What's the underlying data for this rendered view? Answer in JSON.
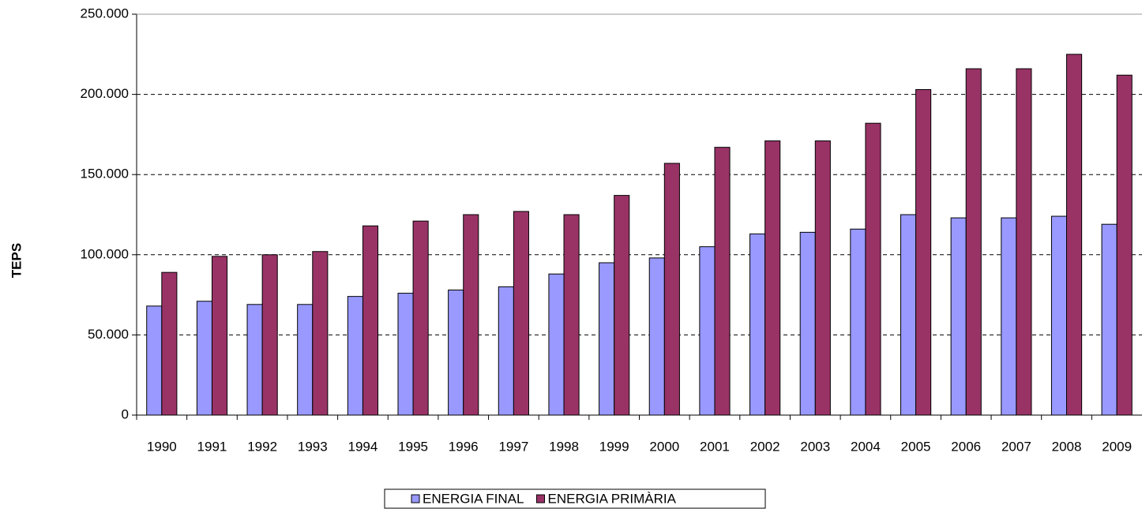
{
  "chart_data": {
    "type": "bar",
    "y_label": "TEPS",
    "categories": [
      "1990",
      "1991",
      "1992",
      "1993",
      "1994",
      "1995",
      "1996",
      "1997",
      "1998",
      "1999",
      "2000",
      "2001",
      "2002",
      "2003",
      "2004",
      "2005",
      "2006",
      "2007",
      "2008",
      "2009"
    ],
    "series": [
      {
        "name": "ENERGIA FINAL",
        "color": "#9999ff",
        "values": [
          68000,
          71000,
          69000,
          69000,
          74000,
          76000,
          78000,
          80000,
          88000,
          95000,
          98000,
          105000,
          113000,
          114000,
          116000,
          125000,
          123000,
          123000,
          124000,
          119000
        ]
      },
      {
        "name": "ENERGIA PRIMÀRIA",
        "color": "#993366",
        "values": [
          89000,
          99000,
          100000,
          102000,
          118000,
          121000,
          125000,
          127000,
          125000,
          137000,
          157000,
          167000,
          171000,
          171000,
          182000,
          203000,
          216000,
          216000,
          225000,
          212000
        ]
      }
    ],
    "ylim": [
      0,
      250000
    ],
    "yticks": [
      0,
      {
        "value": 50000,
        "label": "50.000"
      },
      {
        "value": 100000,
        "label": "100.000"
      },
      {
        "value": 150000,
        "label": "150.000"
      },
      {
        "value": 200000,
        "label": "200.000"
      },
      {
        "value": 250000,
        "label": "250.000"
      }
    ],
    "grid": true,
    "legend": "bottom"
  }
}
